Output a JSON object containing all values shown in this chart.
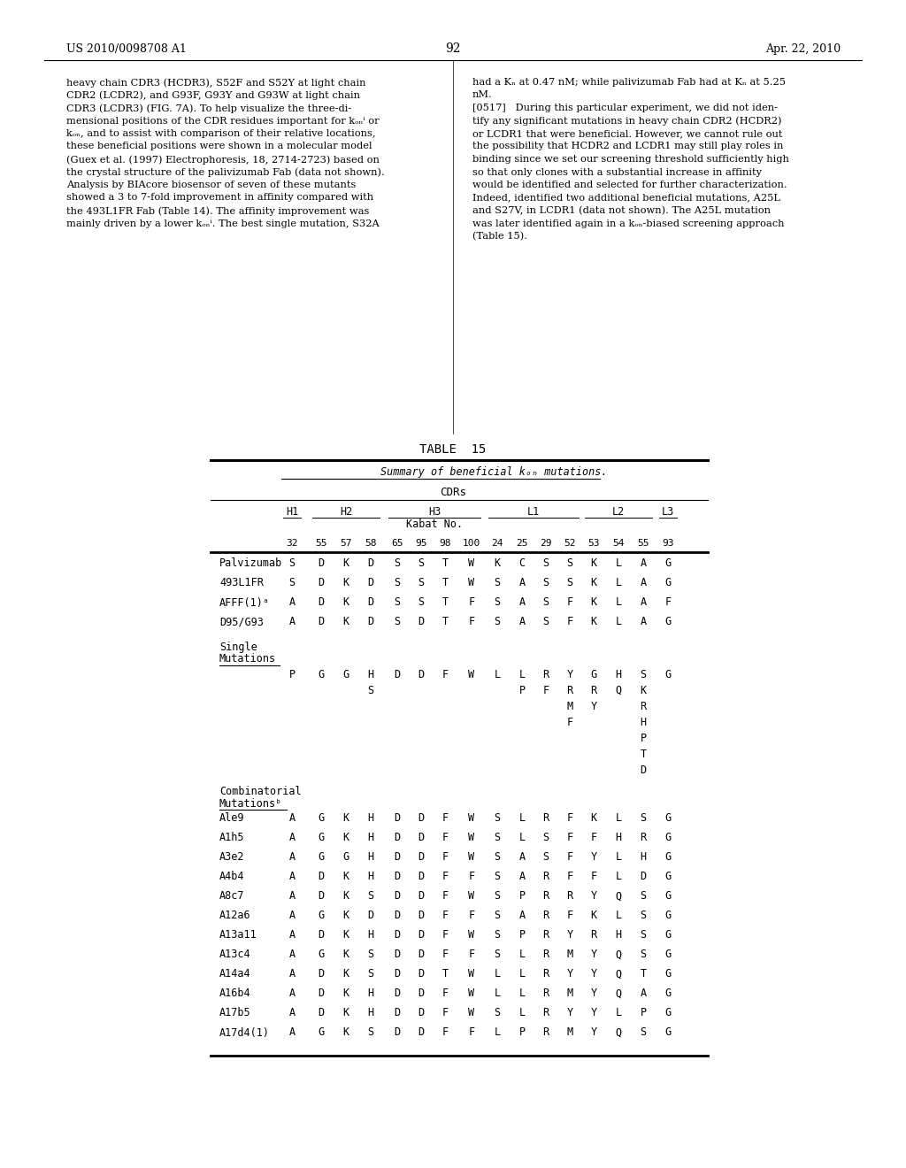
{
  "page_header_left": "US 2010/0098708 A1",
  "page_header_right": "Apr. 22, 2010",
  "page_number": "92",
  "left_text_col1": [
    "heavy chain CDR3 (HCDR3), S52F and S52Y at light chain",
    "CDR2 (LCDR2), and G93F, G93Y and G93W at light chain",
    "CDR3 (LCDR3) (FIG. 7A). To help visualize the three-di-",
    "mensional positions of the CDR residues important for kₒₙⁱ or",
    "kₒₙ, and to assist with comparison of their relative locations,",
    "these beneficial positions were shown in a molecular model",
    "(Guex et al. (1997) Electrophoresis, 18, 2714-2723) based on",
    "the crystal structure of the palivizumab Fab (data not shown).",
    "Analysis by BIAcore biosensor of seven of these mutants",
    "showed a 3 to 7-fold improvement in affinity compared with",
    "the 493L1FR Fab (Table 14). The affinity improvement was",
    "mainly driven by a lower kₒₙⁱ. The best single mutation, S32A"
  ],
  "left_text_col2": [
    "had a Kₙ at 0.47 nM; while palivizumab Fab had at Kₙ at 5.25",
    "nM.",
    "[0517]   During this particular experiment, we did not iden-",
    "tify any significant mutations in heavy chain CDR2 (HCDR2)",
    "or LCDR1 that were beneficial. However, we cannot rule out",
    "the possibility that HCDR2 and LCDR1 may still play roles in",
    "binding since we set our screening threshold sufficiently high",
    "so that only clones with a substantial increase in affinity",
    "would be identified and selected for further characterization.",
    "Indeed, identified two additional beneficial mutations, A25L",
    "and S27V, in LCDR1 (data not shown). The A25L mutation",
    "was later identified again in a kₒₙ-biased screening approach",
    "(Table 15)."
  ],
  "table_title": "TABLE  15",
  "table_subtitle": "Summary of beneficial kₒₙ mutations.",
  "cdrs_label": "CDRs",
  "col_numbers": [
    "32",
    "55",
    "57",
    "58",
    "65",
    "95",
    "98",
    "100",
    "24",
    "25",
    "29",
    "52",
    "53",
    "54",
    "55",
    "93"
  ],
  "rows": [
    {
      "label": "Palvizumab",
      "vals": [
        "S",
        "D",
        "K",
        "D",
        "S",
        "S",
        "T",
        "W",
        "K",
        "C",
        "S",
        "S",
        "K",
        "L",
        "A",
        "G"
      ]
    },
    {
      "label": "493L1FR",
      "vals": [
        "S",
        "D",
        "K",
        "D",
        "S",
        "S",
        "T",
        "W",
        "S",
        "A",
        "S",
        "S",
        "K",
        "L",
        "A",
        "G"
      ]
    },
    {
      "label": "AFFF(1)ᵃ",
      "vals": [
        "A",
        "D",
        "K",
        "D",
        "S",
        "S",
        "T",
        "F",
        "S",
        "A",
        "S",
        "F",
        "K",
        "L",
        "A",
        "F"
      ]
    },
    {
      "label": "D95/G93",
      "vals": [
        "A",
        "D",
        "K",
        "D",
        "S",
        "D",
        "T",
        "F",
        "S",
        "A",
        "S",
        "F",
        "K",
        "L",
        "A",
        "G"
      ]
    }
  ],
  "single_mutations_row1": [
    "P",
    "G",
    "G",
    "H",
    "D",
    "D",
    "F",
    "W",
    "L",
    "L",
    "R",
    "Y",
    "G",
    "H",
    "S",
    "G"
  ],
  "single_mutations_row2": [
    "",
    "",
    "",
    "S",
    "",
    "",
    "",
    "",
    "",
    "P",
    "F",
    "R",
    "R",
    "Q",
    "K",
    ""
  ],
  "single_mutations_row3": [
    "",
    "",
    "",
    "",
    "",
    "",
    "",
    "",
    "",
    "",
    "",
    "M",
    "Y",
    "",
    "R",
    ""
  ],
  "single_mutations_row4": [
    "",
    "",
    "",
    "",
    "",
    "",
    "",
    "",
    "",
    "",
    "",
    "F",
    "",
    "",
    "H",
    ""
  ],
  "single_mutations_row5": [
    "",
    "",
    "",
    "",
    "",
    "",
    "",
    "",
    "",
    "",
    "",
    "",
    "",
    "",
    "P",
    ""
  ],
  "single_mutations_row6": [
    "",
    "",
    "",
    "",
    "",
    "",
    "",
    "",
    "",
    "",
    "",
    "",
    "",
    "",
    "T",
    ""
  ],
  "single_mutations_row7": [
    "",
    "",
    "",
    "",
    "",
    "",
    "",
    "",
    "",
    "",
    "",
    "",
    "",
    "",
    "D",
    ""
  ],
  "combo_rows": [
    {
      "label": "Ale9",
      "vals": [
        "A",
        "G",
        "K",
        "H",
        "D",
        "D",
        "F",
        "W",
        "S",
        "L",
        "R",
        "F",
        "K",
        "L",
        "S",
        "G"
      ]
    },
    {
      "label": "A1h5",
      "vals": [
        "A",
        "G",
        "K",
        "H",
        "D",
        "D",
        "F",
        "W",
        "S",
        "L",
        "S",
        "F",
        "F",
        "H",
        "R",
        "G"
      ]
    },
    {
      "label": "A3e2",
      "vals": [
        "A",
        "G",
        "G",
        "H",
        "D",
        "D",
        "F",
        "W",
        "S",
        "A",
        "S",
        "F",
        "Y",
        "L",
        "H",
        "G"
      ]
    },
    {
      "label": "A4b4",
      "vals": [
        "A",
        "D",
        "K",
        "H",
        "D",
        "D",
        "F",
        "F",
        "S",
        "A",
        "R",
        "F",
        "F",
        "L",
        "D",
        "G"
      ]
    },
    {
      "label": "A8c7",
      "vals": [
        "A",
        "D",
        "K",
        "S",
        "D",
        "D",
        "F",
        "W",
        "S",
        "P",
        "R",
        "R",
        "Y",
        "Q",
        "S",
        "G"
      ]
    },
    {
      "label": "A12a6",
      "vals": [
        "A",
        "G",
        "K",
        "D",
        "D",
        "D",
        "F",
        "F",
        "S",
        "A",
        "R",
        "F",
        "K",
        "L",
        "S",
        "G"
      ]
    },
    {
      "label": "A13a11",
      "vals": [
        "A",
        "D",
        "K",
        "H",
        "D",
        "D",
        "F",
        "W",
        "S",
        "P",
        "R",
        "Y",
        "R",
        "H",
        "S",
        "G"
      ]
    },
    {
      "label": "A13c4",
      "vals": [
        "A",
        "G",
        "K",
        "S",
        "D",
        "D",
        "F",
        "F",
        "S",
        "L",
        "R",
        "M",
        "Y",
        "Q",
        "S",
        "G"
      ]
    },
    {
      "label": "A14a4",
      "vals": [
        "A",
        "D",
        "K",
        "S",
        "D",
        "D",
        "T",
        "W",
        "L",
        "L",
        "R",
        "Y",
        "Y",
        "Q",
        "T",
        "G"
      ]
    },
    {
      "label": "A16b4",
      "vals": [
        "A",
        "D",
        "K",
        "H",
        "D",
        "D",
        "F",
        "W",
        "L",
        "L",
        "R",
        "M",
        "Y",
        "Q",
        "A",
        "G"
      ]
    },
    {
      "label": "A17b5",
      "vals": [
        "A",
        "D",
        "K",
        "H",
        "D",
        "D",
        "F",
        "W",
        "S",
        "L",
        "R",
        "Y",
        "Y",
        "L",
        "P",
        "G"
      ]
    },
    {
      "label": "A17d4(1)",
      "vals": [
        "A",
        "G",
        "K",
        "S",
        "D",
        "D",
        "F",
        "F",
        "L",
        "P",
        "R",
        "M",
        "Y",
        "Q",
        "S",
        "G"
      ]
    }
  ]
}
